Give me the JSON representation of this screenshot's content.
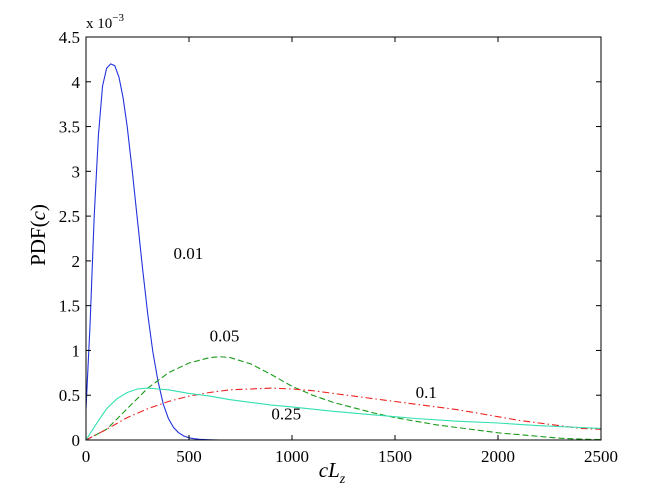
{
  "chart_data": {
    "type": "line",
    "title": "",
    "xlabel": {
      "main": "cL",
      "sub": "z"
    },
    "ylabel": {
      "pre": "PDF(",
      "var": "c",
      "post": ")"
    },
    "y_scale_note": {
      "base": "x 10",
      "exp": "−3"
    },
    "xlim": [
      0,
      2500
    ],
    "ylim": [
      0,
      4.5
    ],
    "xticks": [
      0,
      500,
      1000,
      1500,
      2000,
      2500
    ],
    "yticks": [
      0,
      0.5,
      1,
      1.5,
      2,
      2.5,
      3,
      3.5,
      4,
      4.5
    ],
    "grid": false,
    "legend": "none",
    "series": [
      {
        "label": "0.01",
        "color": "#2233dd",
        "style": "solid",
        "x": [
          0,
          20,
          40,
          60,
          80,
          100,
          120,
          140,
          160,
          180,
          200,
          225,
          250,
          275,
          300,
          325,
          350,
          375,
          400,
          425,
          450,
          475,
          500,
          525,
          550,
          575,
          600,
          625,
          650
        ],
        "y": [
          0.35,
          1.3,
          2.5,
          3.4,
          3.95,
          4.15,
          4.2,
          4.18,
          4.05,
          3.82,
          3.5,
          3.0,
          2.45,
          1.9,
          1.4,
          0.98,
          0.65,
          0.4,
          0.24,
          0.14,
          0.08,
          0.045,
          0.025,
          0.014,
          0.008,
          0.004,
          0.002,
          0.001,
          0.0
        ]
      },
      {
        "label": "0.05",
        "color": "#1a9a1a",
        "style": "dashed",
        "x": [
          0,
          100,
          200,
          300,
          400,
          500,
          600,
          650,
          700,
          800,
          900,
          1000,
          1100,
          1200,
          1300,
          1400,
          1500,
          1600,
          1700,
          1800,
          1900,
          2000,
          2100,
          2200,
          2300,
          2400,
          2500
        ],
        "y": [
          0.0,
          0.12,
          0.35,
          0.58,
          0.75,
          0.86,
          0.92,
          0.93,
          0.92,
          0.85,
          0.73,
          0.6,
          0.5,
          0.42,
          0.36,
          0.3,
          0.25,
          0.21,
          0.17,
          0.14,
          0.11,
          0.08,
          0.06,
          0.04,
          0.02,
          0.01,
          0.005
        ]
      },
      {
        "label": "0.1",
        "color": "#ee2222",
        "style": "dashdot",
        "x": [
          0,
          100,
          200,
          300,
          400,
          500,
          600,
          700,
          800,
          900,
          1000,
          1100,
          1200,
          1300,
          1400,
          1500,
          1600,
          1700,
          1800,
          1900,
          2000,
          2100,
          2200,
          2300,
          2400,
          2500
        ],
        "y": [
          0.0,
          0.12,
          0.25,
          0.35,
          0.43,
          0.49,
          0.53,
          0.56,
          0.57,
          0.58,
          0.57,
          0.55,
          0.52,
          0.49,
          0.46,
          0.43,
          0.4,
          0.37,
          0.34,
          0.3,
          0.26,
          0.22,
          0.19,
          0.16,
          0.13,
          0.12
        ]
      },
      {
        "label": "0.25",
        "color": "#33e0b0",
        "style": "solid",
        "x": [
          0,
          50,
          100,
          150,
          200,
          250,
          300,
          350,
          400,
          500,
          600,
          700,
          800,
          900,
          1000,
          1200,
          1400,
          1600,
          1800,
          2000,
          2200,
          2400,
          2500
        ],
        "y": [
          0.0,
          0.18,
          0.35,
          0.46,
          0.53,
          0.57,
          0.58,
          0.57,
          0.56,
          0.52,
          0.49,
          0.45,
          0.42,
          0.39,
          0.37,
          0.32,
          0.28,
          0.24,
          0.21,
          0.19,
          0.16,
          0.14,
          0.13
        ]
      }
    ],
    "annotations": [
      {
        "text": "0.01",
        "x": 425,
        "y": 2.02
      },
      {
        "text": "0.05",
        "x": 600,
        "y": 1.1
      },
      {
        "text": "0.1",
        "x": 1600,
        "y": 0.47
      },
      {
        "text": "0.25",
        "x": 900,
        "y": 0.23
      }
    ]
  }
}
